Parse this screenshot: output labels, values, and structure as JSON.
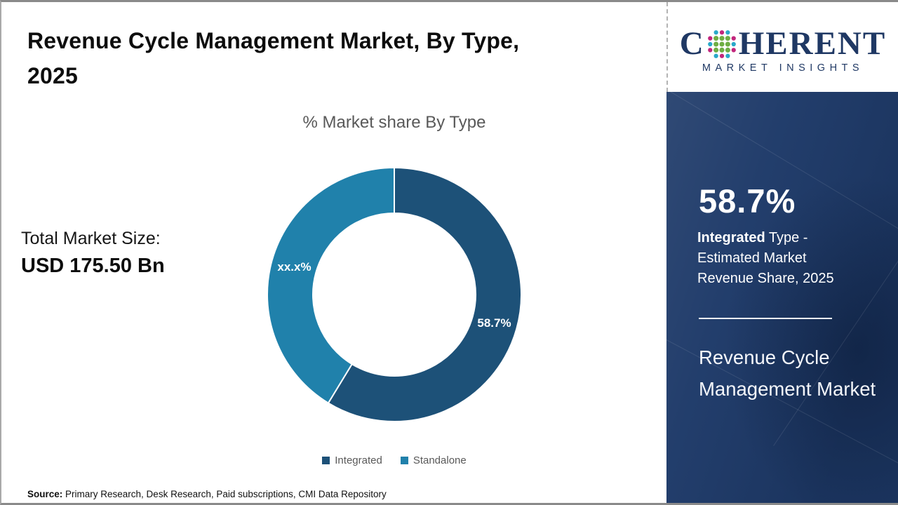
{
  "page": {
    "title_line1": "Revenue Cycle Management Market, By Type,",
    "title_line2": "2025",
    "source_label": "Source:",
    "source_text": "Primary Research, Desk Research, Paid subscriptions, CMI Data Repository"
  },
  "left": {
    "total_label": "Total Market Size:",
    "total_value": "USD 175.50 Bn"
  },
  "chart_data": {
    "type": "pie",
    "subtype": "donut",
    "title": "% Market share By Type",
    "series": [
      {
        "name": "Integrated",
        "value": 58.7,
        "label": "58.7%",
        "color": "#1d5178"
      },
      {
        "name": "Standalone",
        "value": 41.3,
        "label": "xx.x%",
        "color": "#2081ab"
      }
    ],
    "start_angle_deg": 0,
    "direction": "clockwise",
    "legend_position": "bottom",
    "label_color": "#ffffff"
  },
  "logo": {
    "brand_c": "C",
    "brand_rest": "HERENT",
    "subtitle": "MARKET INSIGHTS",
    "brand_color": "#1f3864",
    "globe_colors": {
      "green": "#6fae44",
      "teal": "#2aa9c9",
      "magenta": "#c2267d"
    }
  },
  "panel": {
    "stat_value": "58.7%",
    "stat_bold": "Integrated",
    "stat_rest": " Type - Estimated Market Revenue Share, 2025",
    "market_name": "Revenue Cycle Management Market",
    "background_color": "#1e3a69"
  }
}
